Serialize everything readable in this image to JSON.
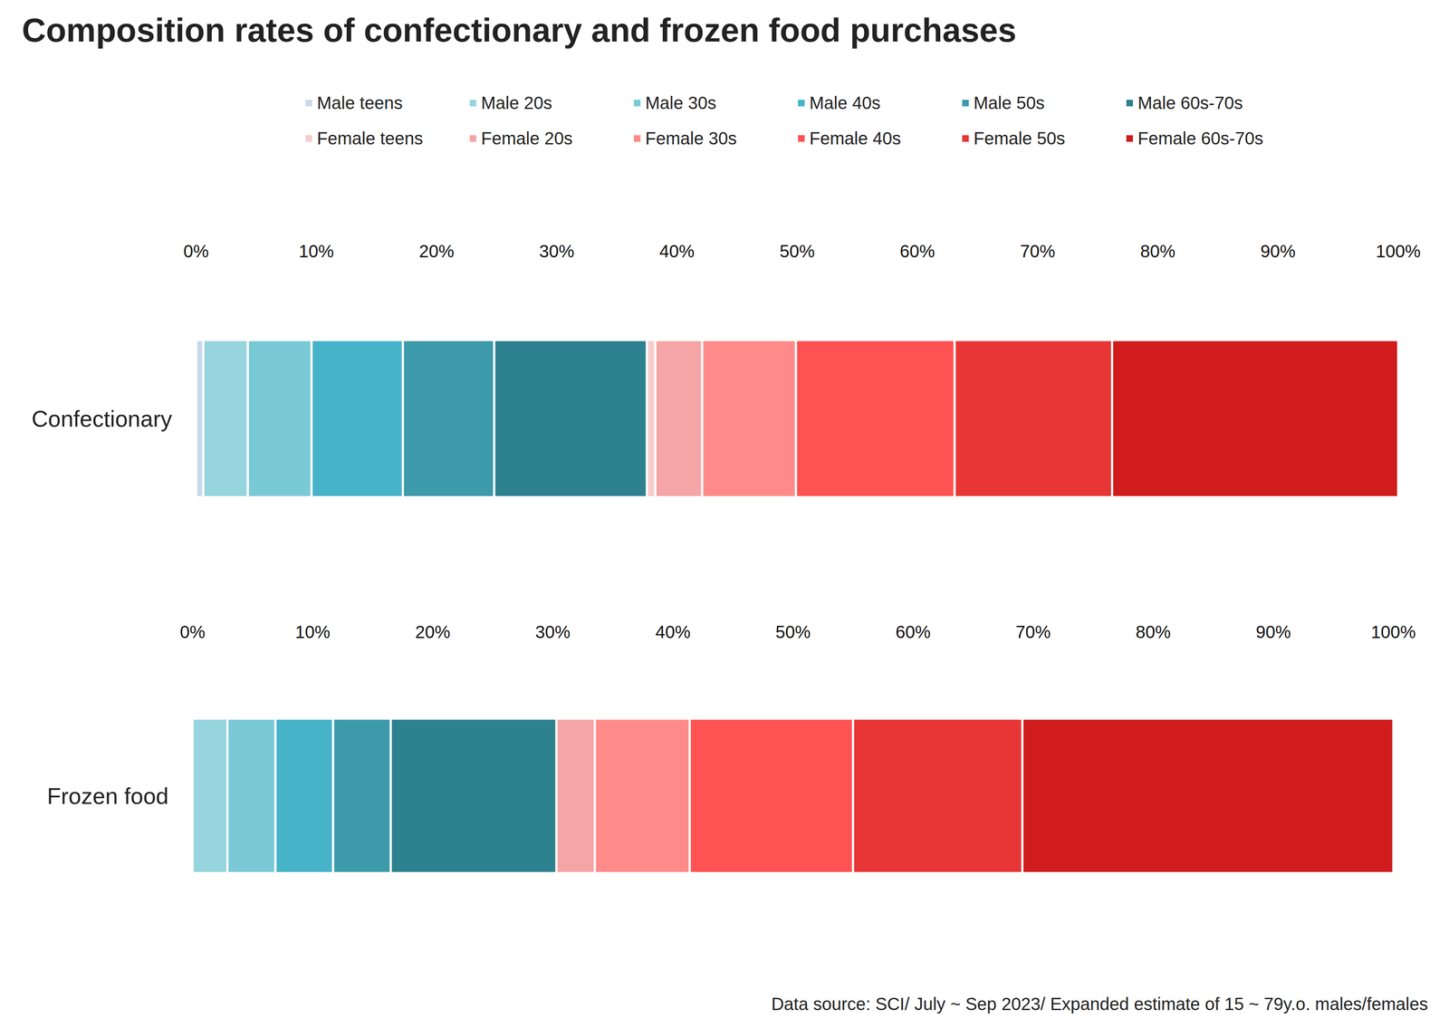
{
  "chart_data": {
    "type": "bar",
    "title": "Composition rates of confectionary and frozen food purchases",
    "source": "Data source: SCI/ July ~ Sep 2023/ Expanded estimate of 15 ~ 79y.o. males/females",
    "orientation": "horizontal",
    "stacked": true,
    "grid": false,
    "legend": "top",
    "categories": [
      "Confectionary",
      "Frozen food"
    ],
    "xlim": [
      0,
      100
    ],
    "xticks": [
      {
        "value": 0,
        "label": "0%"
      },
      {
        "value": 10,
        "label": "10%"
      },
      {
        "value": 20,
        "label": "20%"
      },
      {
        "value": 30,
        "label": "30%"
      },
      {
        "value": 40,
        "label": "40%"
      },
      {
        "value": 50,
        "label": "50%"
      },
      {
        "value": 60,
        "label": "60%"
      },
      {
        "value": 70,
        "label": "70%"
      },
      {
        "value": 80,
        "label": "80%"
      },
      {
        "value": 90,
        "label": "90%"
      },
      {
        "value": 100,
        "label": "100%"
      }
    ],
    "series": [
      {
        "name": "Male teens",
        "color": "#c9d9ec",
        "values": [
          0.6,
          0
        ]
      },
      {
        "name": "Male 20s",
        "color": "#96d4de",
        "values": [
          3.7,
          2.9
        ]
      },
      {
        "name": "Male 30s",
        "color": "#7ac9d6",
        "values": [
          5.3,
          4.0
        ]
      },
      {
        "name": "Male 40s",
        "color": "#46b3c8",
        "values": [
          7.6,
          4.8
        ]
      },
      {
        "name": "Male 50s",
        "color": "#3d9aab",
        "values": [
          7.6,
          4.8
        ]
      },
      {
        "name": "Male 60s-70s",
        "color": "#2e818f",
        "values": [
          12.7,
          13.8
        ]
      },
      {
        "name": "Female teens",
        "color": "#f6cccc",
        "values": [
          0.7,
          0
        ]
      },
      {
        "name": "Female 20s",
        "color": "#f5a5a5",
        "values": [
          3.9,
          3.2
        ]
      },
      {
        "name": "Female 30s",
        "color": "#ff8a8a",
        "values": [
          7.8,
          7.9
        ]
      },
      {
        "name": "Female 40s",
        "color": "#ff5252",
        "values": [
          13.2,
          13.6
        ]
      },
      {
        "name": "Female 50s",
        "color": "#e83636",
        "values": [
          13.1,
          14.1
        ]
      },
      {
        "name": "Female 60s-70s",
        "color": "#d01c1c",
        "values": [
          23.8,
          30.9
        ]
      }
    ]
  }
}
